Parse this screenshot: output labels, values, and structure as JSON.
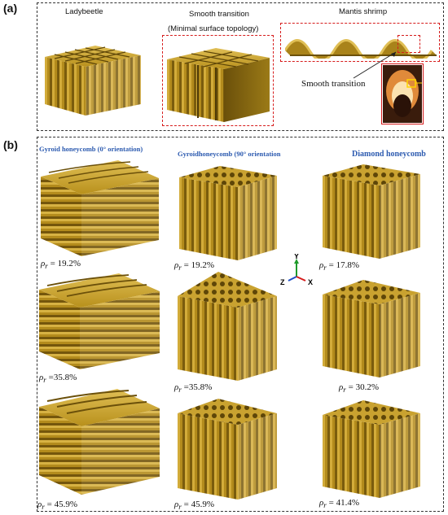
{
  "panel_a": {
    "label": "(a)",
    "titles": {
      "ladybeetle": "Ladybeetle",
      "smooth": "Smooth transition",
      "mantis": "Mantis shrimp"
    },
    "minimal": "(Minimal surface topology)",
    "smooth_transition": "Smooth   transition"
  },
  "panel_b": {
    "label": "(b)",
    "columns": [
      {
        "title": "Gyroid honeycomb (0° orientation)",
        "values": [
          "= 19.2%",
          "=35.8%",
          "= 45.9%"
        ]
      },
      {
        "title": "Gyroidhoneycomb (90° orientation",
        "values": [
          "= 19.2%",
          "=35.8%",
          "= 45.9%"
        ]
      },
      {
        "title": "Diamond honeycomb",
        "values": [
          "= 17.8%",
          "= 30.2%",
          "= 41.4%"
        ]
      }
    ],
    "rho_symbol": "ρ",
    "rho_sub": "r",
    "axes": {
      "y": "Y",
      "z": "Z",
      "x": "X"
    }
  },
  "colors": {
    "gold": "#b8901c",
    "gold_dark": "#7d5f0c",
    "gold_light": "#d9b547",
    "red": "#d61c1c",
    "blue": "#2d5bb0"
  }
}
